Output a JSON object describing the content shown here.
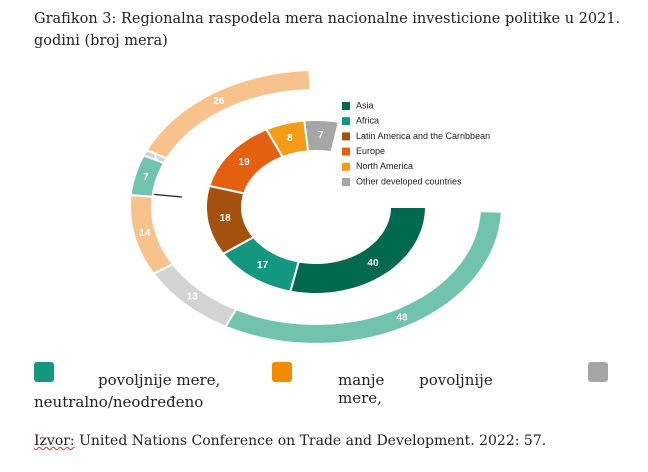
{
  "title": "Grafikon 3: Regionalna raspodela mera nacionalne investicione politike u 2021. godini (broj mera)",
  "chart_data": {
    "type": "donut",
    "inner": {
      "categories": [
        "Asia",
        "Africa",
        "Latin America and the Carribbean",
        "Europe",
        "North America",
        "Other developed countries"
      ],
      "values": [
        40,
        17,
        18,
        19,
        8,
        7
      ],
      "colors": [
        "#00694e",
        "#13977e",
        "#a4500f",
        "#e2600f",
        "#f39c16",
        "#a6a6a6"
      ]
    },
    "outer": {
      "values": [
        48,
        13,
        14,
        7,
        1,
        26
      ],
      "colors": [
        "#72c3ad",
        "#d3d3d3",
        "#f8c28c",
        "#72c3ad",
        "#d3d3d3",
        "#f8c28c"
      ]
    }
  },
  "legend": [
    "povoljnije mere,",
    "manje povoljnije mere,",
    "neutralno/neodređeno"
  ],
  "source": {
    "label": "Izvor:",
    "text": "United Nations Conference on Trade and Development. 2022: 57."
  }
}
